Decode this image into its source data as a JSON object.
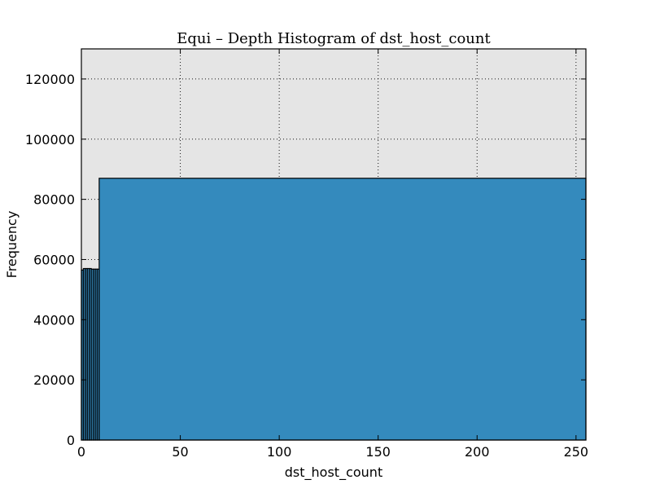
{
  "chart_data": {
    "type": "bar",
    "title": "Equi – Depth Histogram of dst_host_count",
    "xlabel": "dst_host_count",
    "ylabel": "Frequency",
    "xlim": [
      0,
      255
    ],
    "ylim": [
      0,
      130000
    ],
    "xticks": [
      0,
      50,
      100,
      150,
      200,
      250
    ],
    "yticks": [
      0,
      20000,
      40000,
      60000,
      80000,
      100000,
      120000
    ],
    "grid": true,
    "bar_color": "#348ABD",
    "plot_background": "#E5E5E5",
    "bins": [
      {
        "x0": 0,
        "x1": 1,
        "value": 56500
      },
      {
        "x0": 1,
        "x1": 2,
        "value": 57000
      },
      {
        "x0": 2,
        "x1": 3,
        "value": 57000
      },
      {
        "x0": 3,
        "x1": 4,
        "value": 57000
      },
      {
        "x0": 4,
        "x1": 5,
        "value": 57000
      },
      {
        "x0": 5,
        "x1": 6,
        "value": 56800
      },
      {
        "x0": 6,
        "x1": 7,
        "value": 56800
      },
      {
        "x0": 7,
        "x1": 8,
        "value": 56800
      },
      {
        "x0": 8,
        "x1": 9,
        "value": 56800
      },
      {
        "x0": 9,
        "x1": 255,
        "value": 87000
      }
    ]
  }
}
